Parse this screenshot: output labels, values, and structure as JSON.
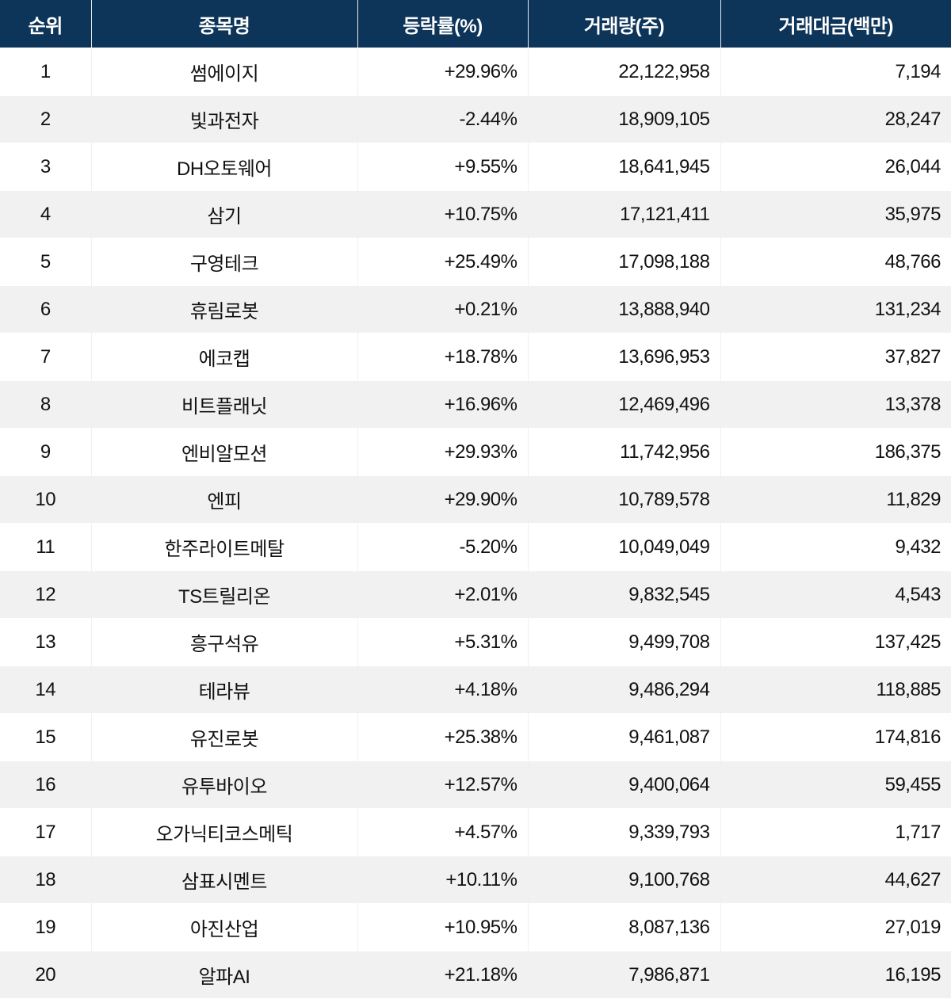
{
  "table": {
    "headers": {
      "rank": "순위",
      "name": "종목명",
      "change": "등락률(%)",
      "volume": "거래량(주)",
      "amount": "거래대금(백만)"
    },
    "rows": [
      {
        "rank": "1",
        "name": "썸에이지",
        "change": "+29.96%",
        "volume": "22,122,958",
        "amount": "7,194"
      },
      {
        "rank": "2",
        "name": "빛과전자",
        "change": "-2.44%",
        "volume": "18,909,105",
        "amount": "28,247"
      },
      {
        "rank": "3",
        "name": "DH오토웨어",
        "change": "+9.55%",
        "volume": "18,641,945",
        "amount": "26,044"
      },
      {
        "rank": "4",
        "name": "삼기",
        "change": "+10.75%",
        "volume": "17,121,411",
        "amount": "35,975"
      },
      {
        "rank": "5",
        "name": "구영테크",
        "change": "+25.49%",
        "volume": "17,098,188",
        "amount": "48,766"
      },
      {
        "rank": "6",
        "name": "휴림로봇",
        "change": "+0.21%",
        "volume": "13,888,940",
        "amount": "131,234"
      },
      {
        "rank": "7",
        "name": "에코캡",
        "change": "+18.78%",
        "volume": "13,696,953",
        "amount": "37,827"
      },
      {
        "rank": "8",
        "name": "비트플래닛",
        "change": "+16.96%",
        "volume": "12,469,496",
        "amount": "13,378"
      },
      {
        "rank": "9",
        "name": "엔비알모션",
        "change": "+29.93%",
        "volume": "11,742,956",
        "amount": "186,375"
      },
      {
        "rank": "10",
        "name": "엔피",
        "change": "+29.90%",
        "volume": "10,789,578",
        "amount": "11,829"
      },
      {
        "rank": "11",
        "name": "한주라이트메탈",
        "change": "-5.20%",
        "volume": "10,049,049",
        "amount": "9,432"
      },
      {
        "rank": "12",
        "name": "TS트릴리온",
        "change": "+2.01%",
        "volume": "9,832,545",
        "amount": "4,543"
      },
      {
        "rank": "13",
        "name": "흥구석유",
        "change": "+5.31%",
        "volume": "9,499,708",
        "amount": "137,425"
      },
      {
        "rank": "14",
        "name": "테라뷰",
        "change": "+4.18%",
        "volume": "9,486,294",
        "amount": "118,885"
      },
      {
        "rank": "15",
        "name": "유진로봇",
        "change": "+25.38%",
        "volume": "9,461,087",
        "amount": "174,816"
      },
      {
        "rank": "16",
        "name": "유투바이오",
        "change": "+12.57%",
        "volume": "9,400,064",
        "amount": "59,455"
      },
      {
        "rank": "17",
        "name": "오가닉티코스메틱",
        "change": "+4.57%",
        "volume": "9,339,793",
        "amount": "1,717"
      },
      {
        "rank": "18",
        "name": "삼표시멘트",
        "change": "+10.11%",
        "volume": "9,100,768",
        "amount": "44,627"
      },
      {
        "rank": "19",
        "name": "아진산업",
        "change": "+10.95%",
        "volume": "8,087,136",
        "amount": "27,019"
      },
      {
        "rank": "20",
        "name": "알파AI",
        "change": "+21.18%",
        "volume": "7,986,871",
        "amount": "16,195"
      }
    ]
  },
  "colors": {
    "header_bg": "#0d3459",
    "header_text": "#ffffff",
    "row_alt_bg": "#f1f1f1",
    "text": "#111111"
  }
}
